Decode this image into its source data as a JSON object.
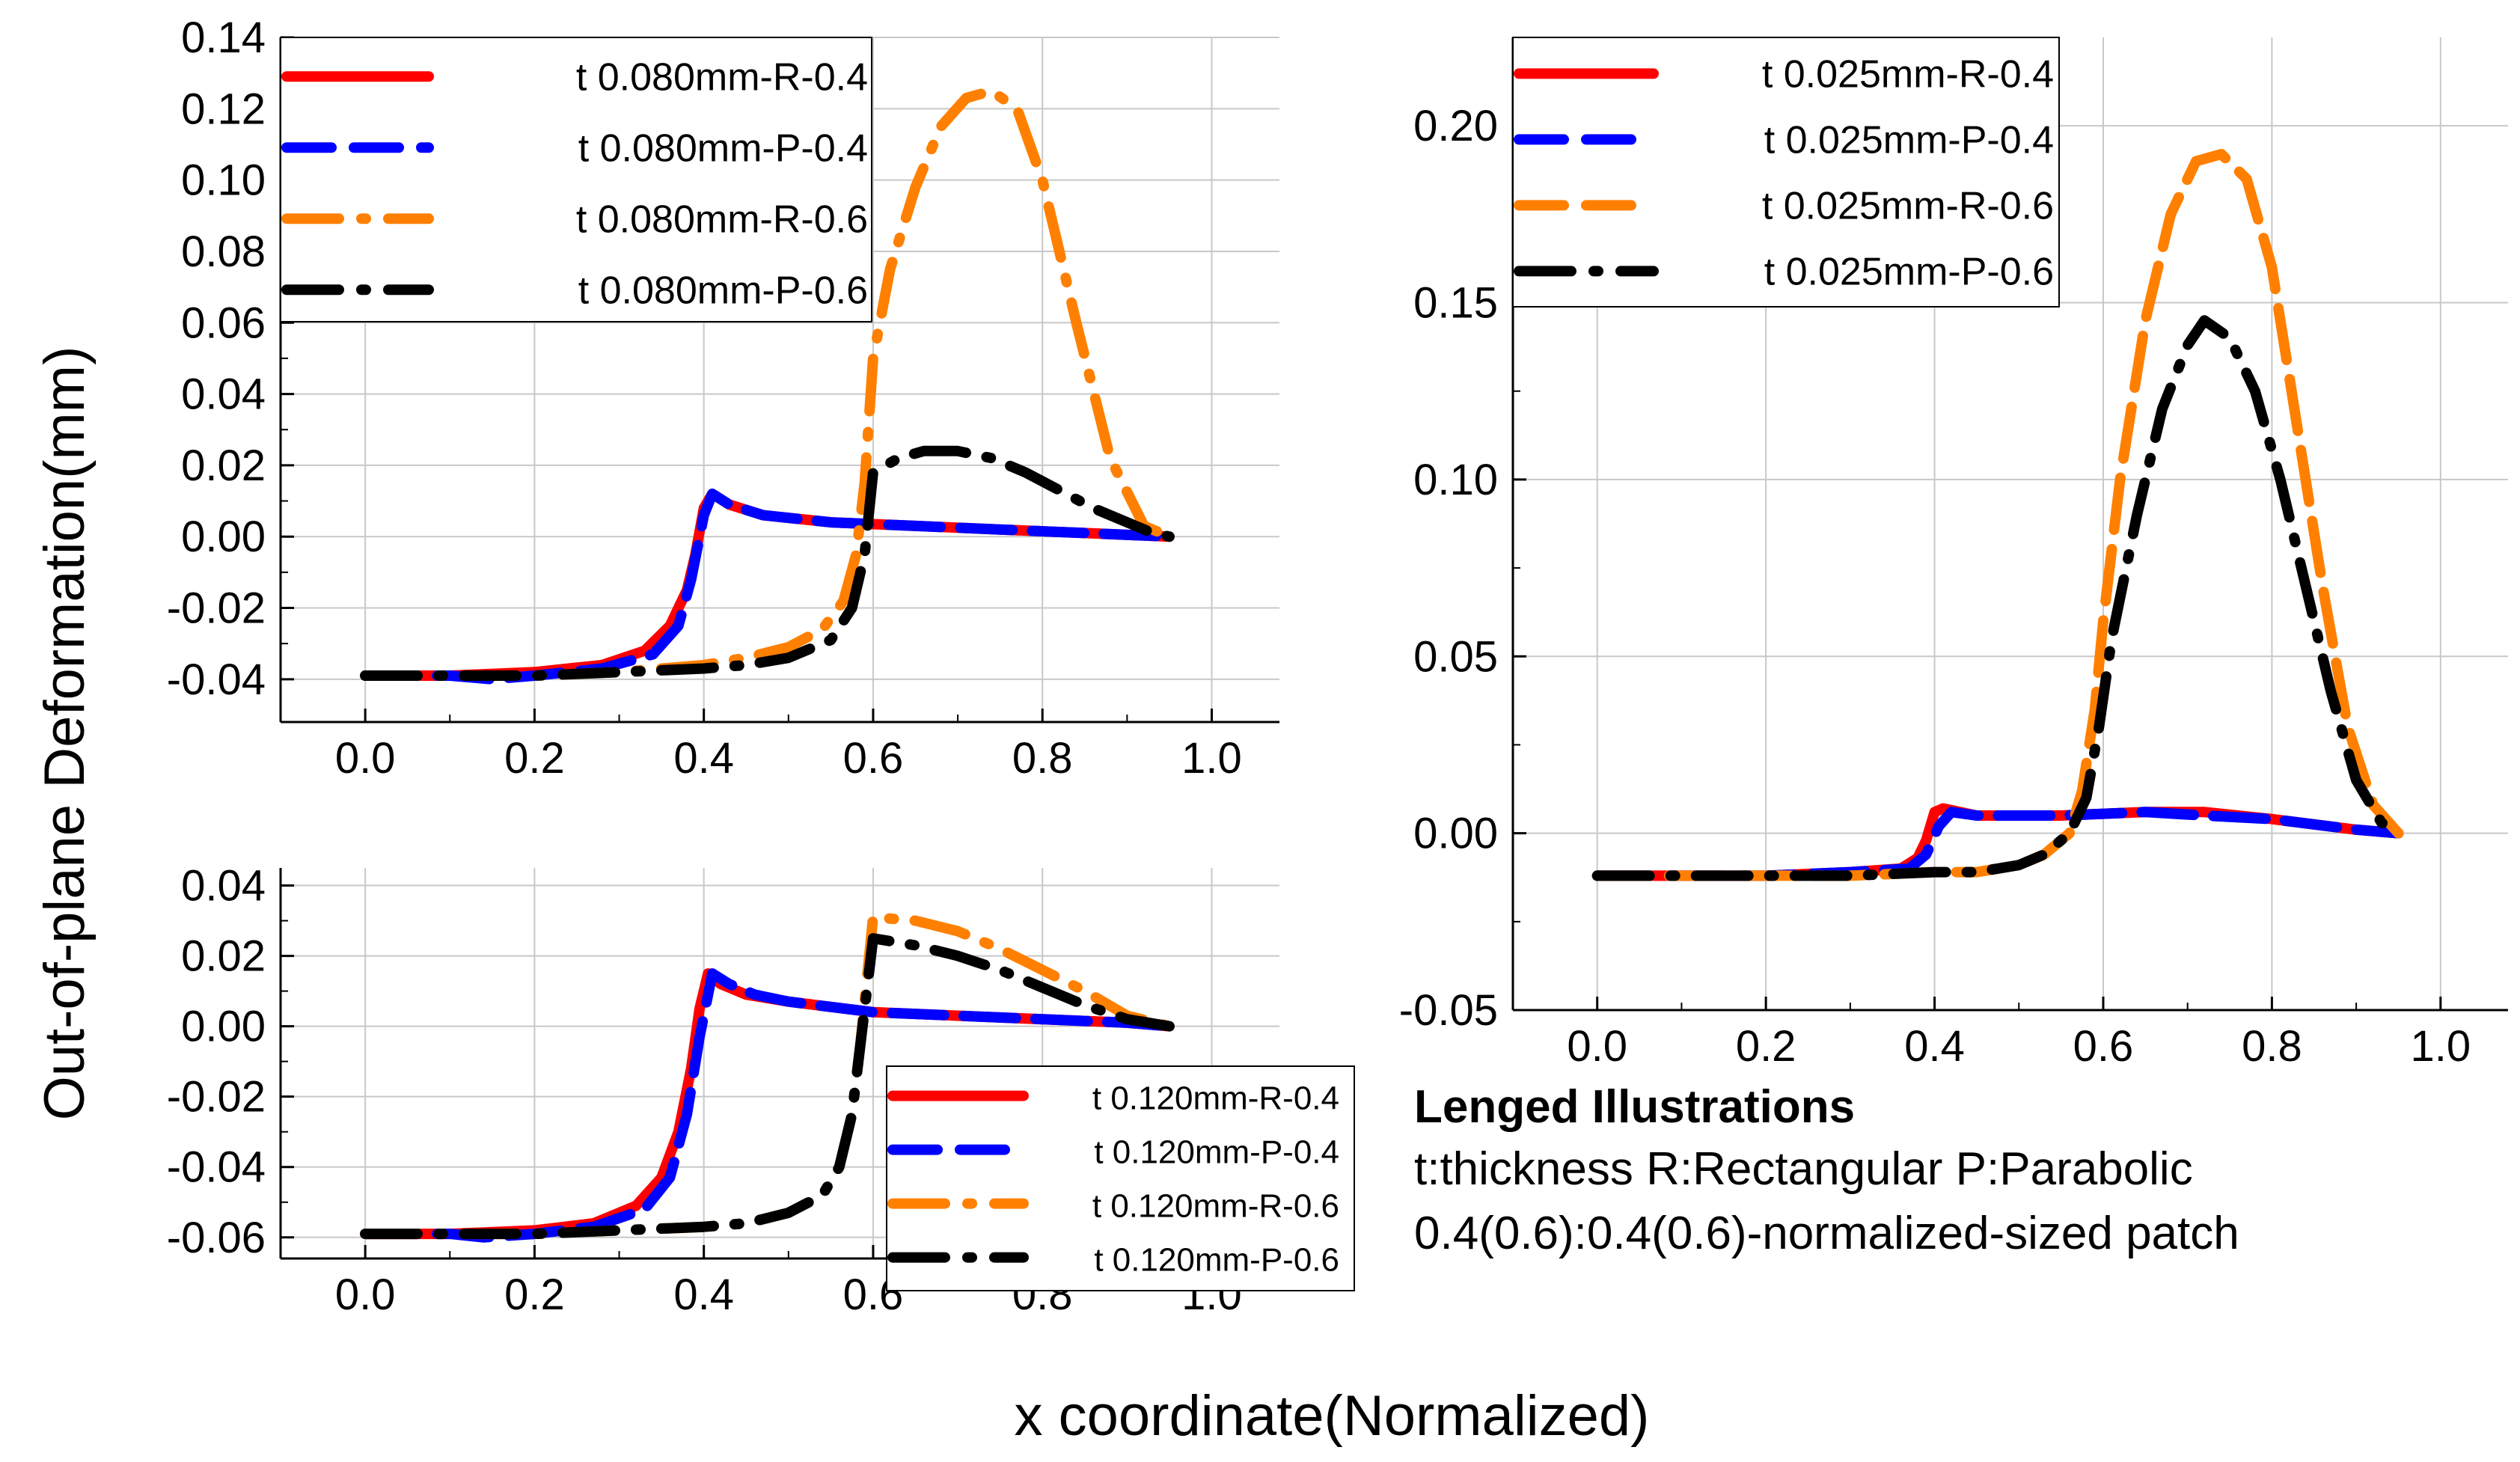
{
  "figure": {
    "ylabel": "Out-of-plane Deformation(mm)",
    "xlabel": "x coordinate(Normalized)",
    "notes": {
      "title": "Lenged Illustrations",
      "line1": "t:thickness R:Rectangular P:Parabolic",
      "line2": "0.4(0.6):0.4(0.6)-normalized-sized patch"
    },
    "series_colors": {
      "R-0.4": "#ff0000",
      "P-0.4": "#0000ff",
      "R-0.6": "#ff8000",
      "P-0.6": "#000000"
    }
  },
  "chart_data": [
    {
      "type": "line",
      "panel": "top-left",
      "title": "",
      "xlabel": "x coordinate(Normalized)",
      "ylabel": "Out-of-plane Deformation(mm)",
      "xlim": [
        -0.1,
        1.08
      ],
      "ylim": [
        -0.052,
        0.14
      ],
      "xticks": [
        0.0,
        0.2,
        0.4,
        0.6,
        0.8,
        1.0
      ],
      "xtick_labels": [
        "0.0",
        "0.2",
        "0.4",
        "0.6",
        "0.8",
        "1.0"
      ],
      "yticks": [
        -0.04,
        -0.02,
        0.0,
        0.02,
        0.04,
        0.06,
        0.08,
        0.1,
        0.12,
        0.14
      ],
      "ytick_labels": [
        "-0.04",
        "-0.02",
        "0.00",
        "0.02",
        "0.04",
        "0.06",
        "0.08",
        "0.10",
        "0.12",
        "0.14"
      ],
      "grid": true,
      "legend_position": "top-left",
      "series": [
        {
          "name": "t 0.080mm-R-0.4",
          "color": "#ff0000",
          "style": "solid",
          "x": [
            0,
            0.1,
            0.2,
            0.28,
            0.33,
            0.36,
            0.38,
            0.39,
            0.4,
            0.41,
            0.43,
            0.47,
            0.55,
            0.65,
            0.75,
            0.85,
            0.95
          ],
          "y": [
            -0.039,
            -0.039,
            -0.038,
            -0.036,
            -0.032,
            -0.025,
            -0.015,
            -0.005,
            0.008,
            0.012,
            0.009,
            0.006,
            0.004,
            0.003,
            0.002,
            0.001,
            0.0
          ]
        },
        {
          "name": "t 0.080mm-P-0.4",
          "color": "#0000ff",
          "style": "dash",
          "x": [
            0,
            0.1,
            0.15,
            0.2,
            0.28,
            0.34,
            0.37,
            0.385,
            0.4,
            0.41,
            0.43,
            0.47,
            0.55,
            0.65,
            0.75,
            0.85,
            0.95
          ],
          "y": [
            -0.039,
            -0.039,
            -0.04,
            -0.039,
            -0.037,
            -0.033,
            -0.025,
            -0.012,
            0.006,
            0.012,
            0.009,
            0.006,
            0.004,
            0.003,
            0.002,
            0.001,
            0.0
          ]
        },
        {
          "name": "t 0.080mm-R-0.6",
          "color": "#ff8000",
          "style": "dashdot",
          "x": [
            0,
            0.1,
            0.2,
            0.3,
            0.4,
            0.45,
            0.5,
            0.54,
            0.565,
            0.58,
            0.59,
            0.6,
            0.62,
            0.65,
            0.68,
            0.71,
            0.74,
            0.77,
            0.8,
            0.84,
            0.88,
            0.92,
            0.95
          ],
          "y": [
            -0.039,
            -0.039,
            -0.039,
            -0.038,
            -0.036,
            -0.034,
            -0.031,
            -0.026,
            -0.018,
            -0.005,
            0.015,
            0.05,
            0.075,
            0.098,
            0.115,
            0.123,
            0.125,
            0.12,
            0.1,
            0.06,
            0.022,
            0.003,
            0.0
          ]
        },
        {
          "name": "t 0.080mm-P-0.6",
          "color": "#000000",
          "style": "dashdot",
          "x": [
            0,
            0.1,
            0.2,
            0.3,
            0.4,
            0.45,
            0.5,
            0.55,
            0.575,
            0.59,
            0.6,
            0.63,
            0.66,
            0.7,
            0.74,
            0.78,
            0.82,
            0.86,
            0.9,
            0.93,
            0.95
          ],
          "y": [
            -0.039,
            -0.039,
            -0.039,
            -0.038,
            -0.037,
            -0.036,
            -0.034,
            -0.029,
            -0.02,
            -0.005,
            0.018,
            0.022,
            0.024,
            0.024,
            0.022,
            0.018,
            0.013,
            0.008,
            0.004,
            0.001,
            0.0
          ]
        }
      ]
    },
    {
      "type": "line",
      "panel": "bottom-left",
      "title": "",
      "xlabel": "x coordinate(Normalized)",
      "ylabel": "Out-of-plane Deformation(mm)",
      "xlim": [
        -0.1,
        1.08
      ],
      "ylim": [
        -0.066,
        0.045
      ],
      "xticks": [
        0.0,
        0.2,
        0.4,
        0.6,
        0.8,
        1.0
      ],
      "xtick_labels": [
        "0.0",
        "0.2",
        "0.4",
        "0.6",
        "0.8",
        "1.0"
      ],
      "yticks": [
        -0.06,
        -0.04,
        -0.02,
        0.0,
        0.02,
        0.04
      ],
      "ytick_labels": [
        "-0.06",
        "-0.04",
        "-0.02",
        "0.00",
        "0.02",
        "0.04"
      ],
      "grid": true,
      "legend_position": "bottom-right",
      "series": [
        {
          "name": "t 0.120mm-R-0.4",
          "color": "#ff0000",
          "style": "solid",
          "x": [
            0,
            0.1,
            0.2,
            0.27,
            0.32,
            0.35,
            0.37,
            0.385,
            0.395,
            0.405,
            0.42,
            0.45,
            0.5,
            0.6,
            0.7,
            0.8,
            0.9,
            0.95
          ],
          "y": [
            -0.059,
            -0.059,
            -0.058,
            -0.056,
            -0.051,
            -0.043,
            -0.03,
            -0.012,
            0.005,
            0.015,
            0.012,
            0.009,
            0.007,
            0.004,
            0.003,
            0.002,
            0.001,
            0.0
          ]
        },
        {
          "name": "t 0.120mm-P-0.4",
          "color": "#0000ff",
          "style": "dash",
          "x": [
            0,
            0.1,
            0.14,
            0.2,
            0.27,
            0.33,
            0.36,
            0.38,
            0.395,
            0.41,
            0.43,
            0.46,
            0.5,
            0.6,
            0.7,
            0.8,
            0.9,
            0.95
          ],
          "y": [
            -0.059,
            -0.059,
            -0.06,
            -0.059,
            -0.057,
            -0.052,
            -0.043,
            -0.025,
            -0.003,
            0.015,
            0.012,
            0.009,
            0.007,
            0.004,
            0.003,
            0.002,
            0.001,
            0.0
          ]
        },
        {
          "name": "t 0.120mm-R-0.6",
          "color": "#ff8000",
          "style": "dashdot",
          "x": [
            0,
            0.1,
            0.2,
            0.3,
            0.4,
            0.45,
            0.5,
            0.54,
            0.56,
            0.575,
            0.585,
            0.6,
            0.65,
            0.7,
            0.75,
            0.8,
            0.85,
            0.9,
            0.95
          ],
          "y": [
            -0.059,
            -0.059,
            -0.059,
            -0.058,
            -0.057,
            -0.056,
            -0.053,
            -0.048,
            -0.04,
            -0.025,
            -0.005,
            0.031,
            0.03,
            0.027,
            0.022,
            0.016,
            0.01,
            0.003,
            0.0
          ]
        },
        {
          "name": "t 0.120mm-P-0.6",
          "color": "#000000",
          "style": "dashdot",
          "x": [
            0,
            0.1,
            0.2,
            0.3,
            0.4,
            0.45,
            0.5,
            0.54,
            0.56,
            0.575,
            0.585,
            0.6,
            0.65,
            0.7,
            0.75,
            0.8,
            0.85,
            0.9,
            0.95
          ],
          "y": [
            -0.059,
            -0.059,
            -0.059,
            -0.058,
            -0.057,
            -0.056,
            -0.053,
            -0.048,
            -0.04,
            -0.025,
            -0.005,
            0.025,
            0.023,
            0.02,
            0.016,
            0.011,
            0.006,
            0.002,
            0.0
          ]
        }
      ]
    },
    {
      "type": "line",
      "panel": "right",
      "title": "",
      "xlabel": "x coordinate(Normalized)",
      "ylabel": "Out-of-plane Deformation(mm)",
      "xlim": [
        -0.1,
        1.08
      ],
      "ylim": [
        -0.05,
        0.225
      ],
      "xticks": [
        0.0,
        0.2,
        0.4,
        0.6,
        0.8,
        1.0
      ],
      "xtick_labels": [
        "0.0",
        "0.2",
        "0.4",
        "0.6",
        "0.8",
        "1.0"
      ],
      "yticks": [
        -0.05,
        0.0,
        0.05,
        0.1,
        0.15,
        0.2
      ],
      "ytick_labels": [
        "-0.05",
        "0.00",
        "0.05",
        "0.10",
        "0.15",
        "0.20"
      ],
      "grid": true,
      "legend_position": "top-left",
      "series": [
        {
          "name": "t 0.025mm-R-0.4",
          "color": "#ff0000",
          "style": "solid",
          "x": [
            0,
            0.1,
            0.2,
            0.3,
            0.36,
            0.38,
            0.39,
            0.4,
            0.41,
            0.45,
            0.55,
            0.65,
            0.72,
            0.8,
            0.9,
            0.95
          ],
          "y": [
            -0.012,
            -0.012,
            -0.012,
            -0.011,
            -0.01,
            -0.007,
            -0.002,
            0.006,
            0.007,
            0.005,
            0.005,
            0.006,
            0.006,
            0.004,
            0.001,
            0.0
          ]
        },
        {
          "name": "t 0.025mm-P-0.4",
          "color": "#0000ff",
          "style": "dash",
          "x": [
            0,
            0.1,
            0.2,
            0.3,
            0.37,
            0.39,
            0.405,
            0.42,
            0.45,
            0.55,
            0.65,
            0.72,
            0.8,
            0.9,
            0.95
          ],
          "y": [
            -0.012,
            -0.012,
            -0.012,
            -0.011,
            -0.01,
            -0.006,
            0.002,
            0.006,
            0.005,
            0.005,
            0.006,
            0.005,
            0.004,
            0.001,
            0.0
          ]
        },
        {
          "name": "t 0.025mm-R-0.6",
          "color": "#ff8000",
          "style": "dash",
          "x": [
            0,
            0.1,
            0.2,
            0.3,
            0.4,
            0.45,
            0.5,
            0.53,
            0.56,
            0.575,
            0.59,
            0.6,
            0.62,
            0.65,
            0.68,
            0.71,
            0.74,
            0.77,
            0.8,
            0.83,
            0.86,
            0.89,
            0.92,
            0.95
          ],
          "y": [
            -0.012,
            -0.012,
            -0.012,
            -0.012,
            -0.011,
            -0.011,
            -0.009,
            -0.006,
            0.0,
            0.012,
            0.035,
            0.06,
            0.1,
            0.145,
            0.175,
            0.19,
            0.192,
            0.185,
            0.16,
            0.115,
            0.07,
            0.03,
            0.008,
            0.0
          ]
        },
        {
          "name": "t 0.025mm-P-0.6",
          "color": "#000000",
          "style": "dashdot",
          "x": [
            0,
            0.1,
            0.2,
            0.3,
            0.4,
            0.45,
            0.5,
            0.53,
            0.56,
            0.58,
            0.595,
            0.61,
            0.64,
            0.67,
            0.7,
            0.72,
            0.75,
            0.78,
            0.81,
            0.84,
            0.87,
            0.9,
            0.93,
            0.95
          ],
          "y": [
            -0.012,
            -0.012,
            -0.012,
            -0.012,
            -0.011,
            -0.011,
            -0.009,
            -0.006,
            0.0,
            0.01,
            0.03,
            0.055,
            0.09,
            0.12,
            0.138,
            0.145,
            0.14,
            0.125,
            0.1,
            0.07,
            0.04,
            0.015,
            0.003,
            0.0
          ]
        }
      ]
    }
  ]
}
